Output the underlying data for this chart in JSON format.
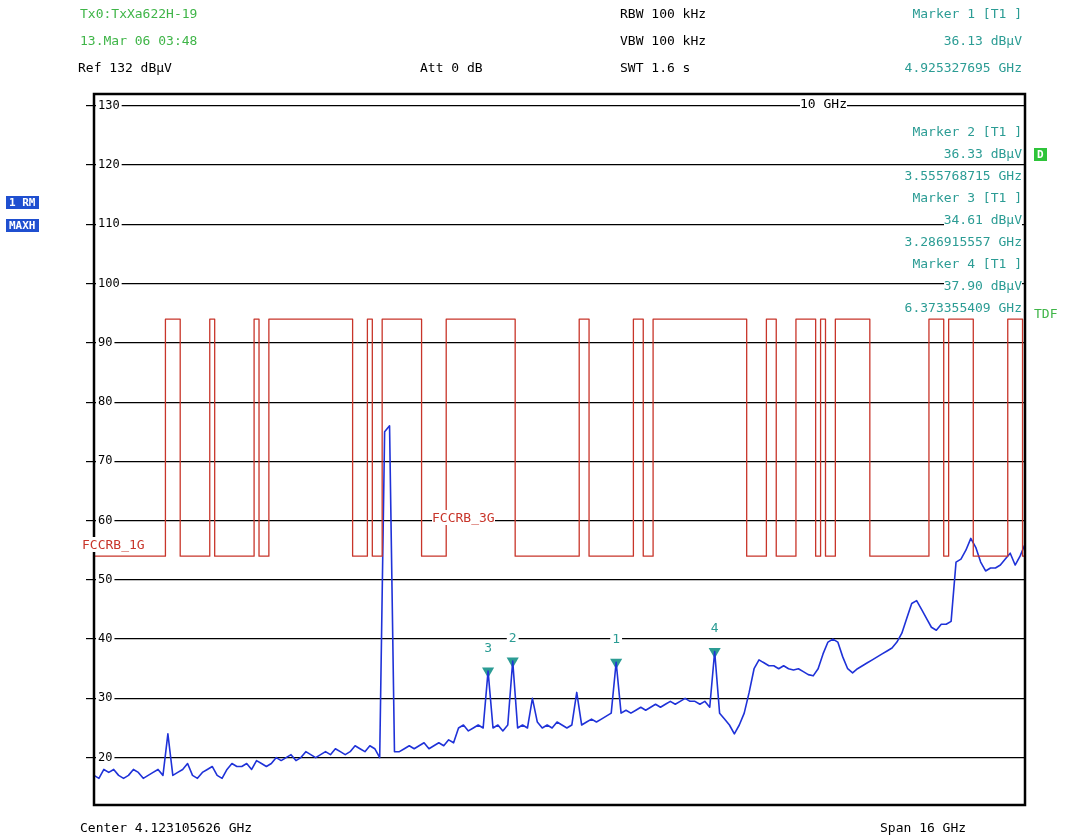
{
  "chart_data": {
    "type": "line",
    "categories": [
      null,
      null,
      null,
      null,
      null,
      null,
      null,
      null,
      null,
      null,
      null,
      null,
      null,
      null,
      null,
      null,
      null,
      null,
      null,
      null,
      null,
      null,
      null,
      null,
      null,
      null,
      null,
      null,
      null,
      null,
      null,
      null,
      null,
      null,
      null,
      null,
      null,
      null,
      null,
      null,
      null,
      null,
      null,
      null,
      null,
      null,
      null,
      null,
      null,
      null,
      null,
      null,
      null,
      null,
      null,
      null,
      null,
      null,
      null,
      null,
      null,
      null,
      null,
      null,
      null,
      null,
      null,
      null,
      null,
      null,
      null,
      null,
      null,
      null,
      null,
      null,
      null,
      null,
      null,
      null,
      null,
      null,
      null,
      null,
      null,
      null,
      null,
      null,
      null,
      null,
      null,
      null,
      null,
      null,
      null,
      null,
      null,
      null,
      null,
      null,
      null,
      null,
      null,
      null,
      null,
      null,
      null,
      null,
      null,
      null,
      null,
      null,
      null,
      null,
      null,
      null,
      null,
      null,
      null,
      null,
      null,
      null,
      null,
      null,
      null,
      null,
      null,
      null,
      null,
      null,
      null,
      null,
      null,
      null,
      null,
      null,
      null,
      null,
      null,
      null,
      null,
      null,
      null,
      null,
      null,
      null,
      null,
      null,
      null,
      null,
      null,
      null,
      null,
      null,
      null,
      null,
      null,
      null,
      null,
      null,
      null,
      null,
      null,
      null,
      null,
      null,
      null,
      null,
      null,
      null,
      null,
      null,
      null,
      null,
      null,
      null,
      null,
      null,
      null,
      null,
      null,
      null,
      null,
      null,
      null,
      null,
      null,
      null,
      null,
      null
    ],
    "series": [
      {
        "type": "step",
        "color": "#c8352a",
        "values": [
          54,
          54,
          54,
          54,
          54,
          54,
          54,
          54,
          54,
          54,
          54,
          54,
          54,
          54,
          54,
          94,
          94,
          94,
          54,
          54,
          54,
          54,
          54,
          54,
          94,
          54,
          54,
          54,
          54,
          54,
          54,
          54,
          54,
          94,
          54,
          54,
          94,
          94,
          94,
          94,
          94,
          94,
          94,
          94,
          94,
          94,
          94,
          94,
          94,
          94,
          94,
          94,
          94,
          54,
          54,
          54,
          94,
          54,
          54,
          94,
          94,
          94,
          94,
          94,
          94,
          94,
          94,
          54,
          54,
          54,
          54,
          54,
          94,
          94,
          94,
          94,
          94,
          94,
          94,
          94,
          94,
          94,
          94,
          94,
          94,
          94,
          54,
          54,
          54,
          54,
          54,
          54,
          54,
          54,
          54,
          54,
          54,
          54,
          54,
          94,
          94,
          54,
          54,
          54,
          54,
          54,
          54,
          54,
          54,
          54,
          94,
          94,
          54,
          54,
          94,
          94,
          94,
          94,
          94,
          94,
          94,
          94,
          94,
          94,
          94,
          94,
          94,
          94,
          94,
          94,
          94,
          94,
          94,
          54,
          54,
          54,
          54,
          94,
          94,
          54,
          54,
          54,
          54,
          94,
          94,
          94,
          94,
          54,
          94,
          54,
          54,
          94,
          94,
          94,
          94,
          94,
          94,
          94,
          54,
          54,
          54,
          54,
          54,
          54,
          54,
          54,
          54,
          54,
          54,
          54,
          94,
          94,
          94,
          54,
          94,
          94,
          94,
          94,
          94,
          54,
          54,
          54,
          54,
          54,
          54,
          54,
          94,
          94,
          94,
          54
        ]
      },
      {
        "color": "#1f32d8",
        "marker": "none",
        "values": [
          17,
          16.5,
          18,
          17.5,
          18,
          17,
          16.5,
          17,
          18,
          17.5,
          16.5,
          17,
          17.5,
          18,
          17,
          24,
          17,
          17.5,
          18,
          19,
          17,
          16.5,
          17.5,
          18,
          18.5,
          17,
          16.5,
          18,
          19,
          18.5,
          18.5,
          19,
          18,
          19.5,
          19,
          18.5,
          19,
          20,
          19.5,
          20,
          20.5,
          19.5,
          20,
          21,
          20.5,
          20,
          20.5,
          21,
          20.5,
          21.5,
          21,
          20.5,
          21,
          22,
          21.5,
          21,
          22,
          21.5,
          20,
          75,
          76,
          21,
          21,
          21.5,
          22,
          21.5,
          22,
          22.5,
          21.5,
          22,
          22.5,
          22,
          23,
          22.5,
          25,
          25.5,
          24.5,
          25,
          25.5,
          25,
          34.6,
          25,
          25.5,
          24.5,
          25.5,
          36.3,
          25,
          25.5,
          25,
          30,
          26,
          25,
          25.5,
          25,
          26,
          25.5,
          25,
          25.5,
          31,
          25.5,
          26,
          26.5,
          26,
          26.5,
          27,
          27.5,
          36.1,
          27.5,
          28,
          27.5,
          28,
          28.5,
          28,
          28.5,
          29,
          28.5,
          29,
          29.5,
          29,
          29.5,
          30,
          29.5,
          29.5,
          29,
          29.5,
          28.5,
          37.9,
          27.5,
          26.5,
          25.5,
          24,
          25.5,
          27.5,
          31,
          35,
          36.5,
          36,
          35.5,
          35.5,
          35,
          35.5,
          35,
          34.8,
          35,
          34.5,
          34,
          33.8,
          35,
          37.5,
          39.5,
          40,
          39.5,
          37,
          35,
          34.3,
          35,
          35.5,
          36,
          36.5,
          37,
          37.5,
          38,
          38.5,
          39.5,
          41,
          43.5,
          46,
          46.5,
          45,
          43.5,
          42,
          41.5,
          42.5,
          42.5,
          43,
          53,
          53.5,
          55,
          57,
          55.5,
          53,
          51.5,
          52,
          52,
          52.5,
          53.5,
          54.5,
          52.5,
          54,
          56
        ]
      },
      {
        "type": "scatter",
        "name": "3",
        "color": "#2b9c94",
        "marker": "triangle",
        "values": [
          null,
          null,
          null,
          null,
          null,
          null,
          null,
          null,
          null,
          null,
          null,
          null,
          null,
          null,
          null,
          null,
          null,
          null,
          null,
          null,
          null,
          null,
          null,
          null,
          null,
          null,
          null,
          null,
          null,
          null,
          null,
          null,
          null,
          null,
          null,
          null,
          null,
          null,
          null,
          null,
          null,
          null,
          null,
          null,
          null,
          null,
          null,
          null,
          null,
          null,
          null,
          null,
          null,
          null,
          null,
          null,
          null,
          null,
          null,
          null,
          null,
          null,
          null,
          null,
          null,
          null,
          null,
          null,
          null,
          null,
          null,
          null,
          null,
          null,
          null,
          null,
          null,
          null,
          null,
          null,
          34.6,
          null,
          null,
          null,
          null,
          null,
          null,
          null,
          null,
          null,
          null,
          null,
          null,
          null,
          null,
          null,
          null,
          null,
          null,
          null,
          null,
          null,
          null,
          null,
          null,
          null,
          null,
          null,
          null,
          null,
          null,
          null,
          null,
          null,
          null,
          null,
          null,
          null,
          null,
          null,
          null,
          null,
          null,
          null,
          null,
          null,
          null,
          null,
          null,
          null,
          null,
          null,
          null,
          null,
          null,
          null,
          null,
          null,
          null,
          null,
          null,
          null,
          null,
          null,
          null,
          null,
          null,
          null,
          null,
          null,
          null,
          null,
          null,
          null,
          null,
          null,
          null,
          null,
          null,
          null,
          null,
          null,
          null,
          null,
          null,
          null,
          null,
          null,
          null,
          null,
          null,
          null,
          null,
          null,
          null,
          null,
          null,
          null,
          null,
          null,
          null,
          null,
          null,
          null,
          null,
          null,
          null,
          null,
          null,
          null
        ]
      },
      {
        "type": "scatter",
        "name": "2",
        "color": "#2b9c94",
        "marker": "triangle",
        "values": [
          null,
          null,
          null,
          null,
          null,
          null,
          null,
          null,
          null,
          null,
          null,
          null,
          null,
          null,
          null,
          null,
          null,
          null,
          null,
          null,
          null,
          null,
          null,
          null,
          null,
          null,
          null,
          null,
          null,
          null,
          null,
          null,
          null,
          null,
          null,
          null,
          null,
          null,
          null,
          null,
          null,
          null,
          null,
          null,
          null,
          null,
          null,
          null,
          null,
          null,
          null,
          null,
          null,
          null,
          null,
          null,
          null,
          null,
          null,
          null,
          null,
          null,
          null,
          null,
          null,
          null,
          null,
          null,
          null,
          null,
          null,
          null,
          null,
          null,
          null,
          null,
          null,
          null,
          null,
          null,
          null,
          null,
          null,
          null,
          null,
          36.3,
          null,
          null,
          null,
          null,
          null,
          null,
          null,
          null,
          null,
          null,
          null,
          null,
          null,
          null,
          null,
          null,
          null,
          null,
          null,
          null,
          null,
          null,
          null,
          null,
          null,
          null,
          null,
          null,
          null,
          null,
          null,
          null,
          null,
          null,
          null,
          null,
          null,
          null,
          null,
          null,
          null,
          null,
          null,
          null,
          null,
          null,
          null,
          null,
          null,
          null,
          null,
          null,
          null,
          null,
          null,
          null,
          null,
          null,
          null,
          null,
          null,
          null,
          null,
          null,
          null,
          null,
          null,
          null,
          null,
          null,
          null,
          null,
          null,
          null,
          null,
          null,
          null,
          null,
          null,
          null,
          null,
          null,
          null,
          null,
          null,
          null,
          null,
          null,
          null,
          null,
          null,
          null,
          null,
          null,
          null,
          null,
          null,
          null,
          null,
          null,
          null,
          null,
          null,
          null
        ]
      },
      {
        "type": "scatter",
        "name": "1",
        "color": "#2b9c94",
        "marker": "triangle",
        "values": [
          null,
          null,
          null,
          null,
          null,
          null,
          null,
          null,
          null,
          null,
          null,
          null,
          null,
          null,
          null,
          null,
          null,
          null,
          null,
          null,
          null,
          null,
          null,
          null,
          null,
          null,
          null,
          null,
          null,
          null,
          null,
          null,
          null,
          null,
          null,
          null,
          null,
          null,
          null,
          null,
          null,
          null,
          null,
          null,
          null,
          null,
          null,
          null,
          null,
          null,
          null,
          null,
          null,
          null,
          null,
          null,
          null,
          null,
          null,
          null,
          null,
          null,
          null,
          null,
          null,
          null,
          null,
          null,
          null,
          null,
          null,
          null,
          null,
          null,
          null,
          null,
          null,
          null,
          null,
          null,
          null,
          null,
          null,
          null,
          null,
          null,
          null,
          null,
          null,
          null,
          null,
          null,
          null,
          null,
          null,
          null,
          null,
          null,
          null,
          null,
          null,
          null,
          null,
          null,
          null,
          null,
          36.1,
          null,
          null,
          null,
          null,
          null,
          null,
          null,
          null,
          null,
          null,
          null,
          null,
          null,
          null,
          null,
          null,
          null,
          null,
          null,
          null,
          null,
          null,
          null,
          null,
          null,
          null,
          null,
          null,
          null,
          null,
          null,
          null,
          null,
          null,
          null,
          null,
          null,
          null,
          null,
          null,
          null,
          null,
          null,
          null,
          null,
          null,
          null,
          null,
          null,
          null,
          null,
          null,
          null,
          null,
          null,
          null,
          null,
          null,
          null,
          null,
          null,
          null,
          null,
          null,
          null,
          null,
          null,
          null,
          null,
          null,
          null,
          null,
          null,
          null,
          null,
          null,
          null,
          null,
          null,
          null,
          null,
          null,
          null
        ]
      },
      {
        "type": "scatter",
        "name": "4",
        "color": "#2b9c94",
        "marker": "triangle",
        "values": [
          null,
          null,
          null,
          null,
          null,
          null,
          null,
          null,
          null,
          null,
          null,
          null,
          null,
          null,
          null,
          null,
          null,
          null,
          null,
          null,
          null,
          null,
          null,
          null,
          null,
          null,
          null,
          null,
          null,
          null,
          null,
          null,
          null,
          null,
          null,
          null,
          null,
          null,
          null,
          null,
          null,
          null,
          null,
          null,
          null,
          null,
          null,
          null,
          null,
          null,
          null,
          null,
          null,
          null,
          null,
          null,
          null,
          null,
          null,
          null,
          null,
          null,
          null,
          null,
          null,
          null,
          null,
          null,
          null,
          null,
          null,
          null,
          null,
          null,
          null,
          null,
          null,
          null,
          null,
          null,
          null,
          null,
          null,
          null,
          null,
          null,
          null,
          null,
          null,
          null,
          null,
          null,
          null,
          null,
          null,
          null,
          null,
          null,
          null,
          null,
          null,
          null,
          null,
          null,
          null,
          null,
          null,
          null,
          null,
          null,
          null,
          null,
          null,
          null,
          null,
          null,
          null,
          null,
          null,
          null,
          null,
          null,
          null,
          null,
          null,
          null,
          37.9,
          null,
          null,
          null,
          null,
          null,
          null,
          null,
          null,
          null,
          null,
          null,
          null,
          null,
          null,
          null,
          null,
          null,
          null,
          null,
          null,
          null,
          null,
          null,
          null,
          null,
          null,
          null,
          null,
          null,
          null,
          null,
          null,
          null,
          null,
          null,
          null,
          null,
          null,
          null,
          null,
          null,
          null,
          null,
          null,
          null,
          null,
          null,
          null,
          null,
          null,
          null,
          null,
          null,
          null,
          null,
          null,
          null,
          null,
          null,
          null,
          null,
          null,
          null
        ]
      }
    ],
    "ylim": [
      12,
      132
    ],
    "yticks": [
      20,
      30,
      40,
      50,
      60,
      70,
      80,
      90,
      100,
      110,
      120,
      130
    ],
    "grid": "y",
    "legend": false,
    "tick_labels": "y",
    "annotations": [
      "Tx0:TxXa622H-19",
      "13.Mar 06 03:48",
      "Ref 132 dBµV",
      "Att 0 dB",
      "RBW 100 kHz",
      "VBW 100 kHz",
      "SWT 1.6 s",
      "Marker 1 [T1 ]",
      "36.13 dBµV",
      "4.925327695 GHz",
      "Marker 2 [T1 ]",
      "36.33 dBµV",
      "3.555768715 GHz",
      "Marker 3 [T1 ]",
      "34.61 dBµV",
      "3.286915557 GHz",
      "Marker 4 [T1 ]",
      "37.90 dBµV",
      "6.373355409 GHz",
      "10 GHz",
      "1 RM",
      "MAXH",
      "D",
      "TDF",
      "FCCRB_1G",
      "FCCRB_3G",
      "Center 4.123105626 GHz",
      "Span 16 GHz"
    ]
  }
}
